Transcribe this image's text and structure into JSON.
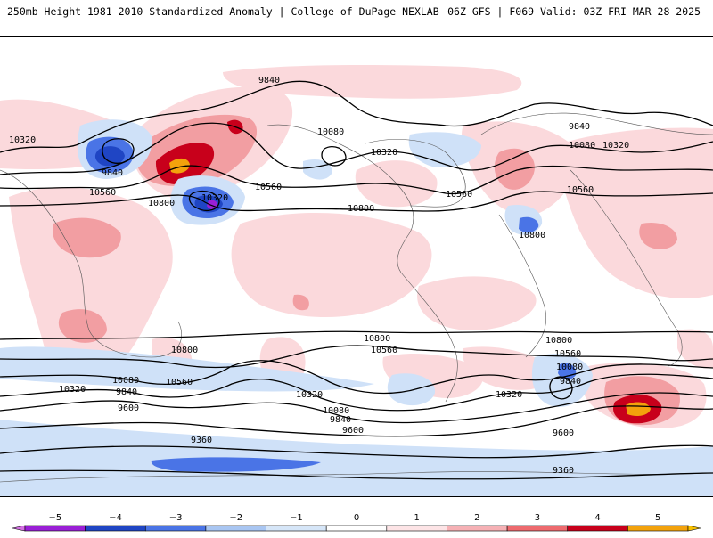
{
  "header": {
    "title": "250mb Height 1981–2010 Standardized Anomaly | College of DuPage NEXLAB",
    "run_info": "06Z GFS | F069 Valid: 03Z FRI MAR 28 2025"
  },
  "map": {
    "contour_labels": [
      {
        "text": "9840"
      },
      {
        "text": "10320"
      },
      {
        "text": "9840"
      },
      {
        "text": "10560"
      },
      {
        "text": "10800"
      },
      {
        "text": "10320"
      },
      {
        "text": "10560"
      },
      {
        "text": "10080"
      },
      {
        "text": "10320"
      },
      {
        "text": "10800"
      },
      {
        "text": "10560"
      },
      {
        "text": "10800"
      },
      {
        "text": "9840"
      },
      {
        "text": "10080"
      },
      {
        "text": "10320"
      },
      {
        "text": "10560"
      },
      {
        "text": "10800"
      },
      {
        "text": "10800"
      },
      {
        "text": "10560"
      },
      {
        "text": "10800"
      },
      {
        "text": "10560"
      },
      {
        "text": "10080"
      },
      {
        "text": "9840"
      },
      {
        "text": "10320"
      },
      {
        "text": "10080"
      },
      {
        "text": "9840"
      },
      {
        "text": "10320"
      },
      {
        "text": "10560"
      },
      {
        "text": "10080"
      },
      {
        "text": "9840"
      },
      {
        "text": "9600"
      },
      {
        "text": "9600"
      },
      {
        "text": "9600"
      },
      {
        "text": "10320"
      },
      {
        "text": "9360"
      },
      {
        "text": "9360"
      }
    ]
  },
  "colorbar": {
    "ticks": [
      "−5",
      "−4",
      "−3",
      "−2",
      "−1",
      "0",
      "1",
      "2",
      "3",
      "4",
      "5"
    ],
    "colors": [
      "#9a1fd6",
      "#1f45c4",
      "#4a74e6",
      "#a9c6f2",
      "#d6e6f8",
      "#ffffff",
      "#fde4e6",
      "#f6b1b5",
      "#ee6a6e",
      "#c8001b",
      "#f3a20c"
    ],
    "end_low_color": "#d46fe3",
    "end_high_color": "#f7c000"
  }
}
